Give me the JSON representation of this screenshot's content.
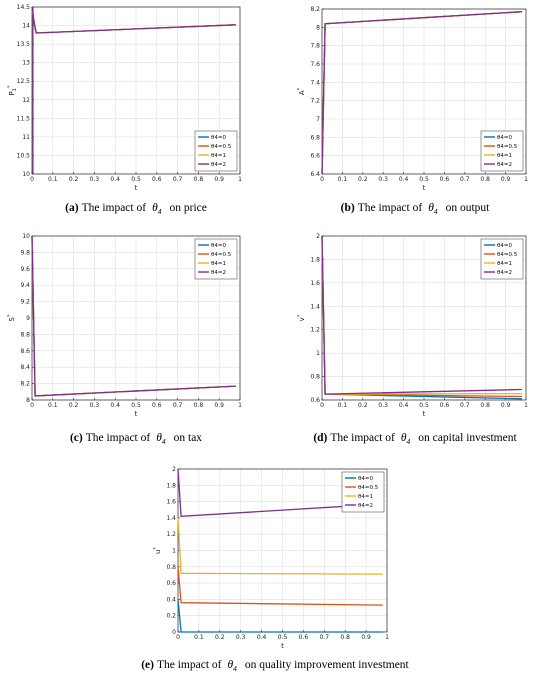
{
  "colors": {
    "theta_0": "#0072BD",
    "theta_0_5": "#D95319",
    "theta_1": "#EDB120",
    "theta_2": "#7E2F8E",
    "axis": "#262626",
    "grid": "#d9d9d9"
  },
  "chart_data": [
    {
      "id": "a",
      "type": "line",
      "caption_tag": "(a)",
      "caption_prefix": "The impact of",
      "caption_symbol": "θ",
      "caption_subscript": "4",
      "caption_suffix": "on price",
      "xlabel": "t",
      "ylabel": "P",
      "ylabel_sub": "1",
      "ylabel_sup": "*",
      "xlim": [
        0,
        1
      ],
      "ylim": [
        10,
        14.5
      ],
      "xticks": [
        0,
        0.1,
        0.2,
        0.3,
        0.4,
        0.5,
        0.6,
        0.7,
        0.8,
        0.9,
        1
      ],
      "xtick_labels": [
        "0",
        "0.1",
        "0.2",
        "0.3",
        "0.4",
        "0.5",
        "0.6",
        "0.7",
        "0.8",
        "0.9",
        "1"
      ],
      "yticks": [
        10,
        10.5,
        11,
        11.5,
        12,
        12.5,
        13,
        13.5,
        14,
        14.5
      ],
      "ytick_labels": [
        "10",
        "10.5",
        "11",
        "11.5",
        "12",
        "12.5",
        "13",
        "13.5",
        "14",
        "14.5"
      ],
      "grid": true,
      "legend_position": "lower-right",
      "series": [
        {
          "name": "θ4=0",
          "color_key": "theta_0",
          "x": [
            0,
            0.012,
            0.02,
            0.98
          ],
          "y": [
            14.5,
            14.0,
            13.8,
            14.02
          ]
        },
        {
          "name": "θ4=0.5",
          "color_key": "theta_0_5",
          "x": [
            0,
            0.012,
            0.02,
            0.98
          ],
          "y": [
            14.5,
            14.0,
            13.8,
            14.02
          ]
        },
        {
          "name": "θ4=1",
          "color_key": "theta_1",
          "x": [
            0,
            0.012,
            0.02,
            0.98
          ],
          "y": [
            14.5,
            14.0,
            13.8,
            14.02
          ]
        },
        {
          "name": "θ4=2",
          "color_key": "theta_2",
          "x": [
            0,
            0.01,
            0.02,
            0.98
          ],
          "y": [
            14.5,
            14.1,
            13.8,
            14.02
          ]
        }
      ],
      "extra_lines": [
        {
          "color_key": "theta_2",
          "x": [
            0.005,
            0.005
          ],
          "y": [
            10,
            14.5
          ]
        }
      ]
    },
    {
      "id": "b",
      "type": "line",
      "caption_tag": "(b)",
      "caption_prefix": "The impact of",
      "caption_symbol": "θ",
      "caption_subscript": "4",
      "caption_suffix": "on output",
      "xlabel": "t",
      "ylabel": "A",
      "ylabel_sub": "",
      "ylabel_sup": "*",
      "xlim": [
        0,
        1
      ],
      "ylim": [
        6.4,
        8.2
      ],
      "xticks": [
        0,
        0.1,
        0.2,
        0.3,
        0.4,
        0.5,
        0.6,
        0.7,
        0.8,
        0.9,
        1
      ],
      "xtick_labels": [
        "0",
        "0.1",
        "0.2",
        "0.3",
        "0.4",
        "0.5",
        "0.6",
        "0.7",
        "0.8",
        "0.9",
        "1"
      ],
      "yticks": [
        6.4,
        6.6,
        6.8,
        7,
        7.2,
        7.4,
        7.6,
        7.8,
        8,
        8.2
      ],
      "ytick_labels": [
        "6.4",
        "6.6",
        "6.8",
        "7",
        "7.2",
        "7.4",
        "7.6",
        "7.8",
        "8",
        "8.2"
      ],
      "grid": true,
      "legend_position": "lower-right",
      "series": [
        {
          "name": "θ4=0",
          "color_key": "theta_0",
          "x": [
            0,
            0.015,
            0.98
          ],
          "y": [
            6.4,
            8.04,
            8.17
          ]
        },
        {
          "name": "θ4=0.5",
          "color_key": "theta_0_5",
          "x": [
            0,
            0.015,
            0.98
          ],
          "y": [
            6.4,
            8.04,
            8.17
          ]
        },
        {
          "name": "θ4=1",
          "color_key": "theta_1",
          "x": [
            0,
            0.015,
            0.98
          ],
          "y": [
            6.4,
            8.04,
            8.17
          ]
        },
        {
          "name": "θ4=2",
          "color_key": "theta_2",
          "x": [
            0,
            0.015,
            0.98
          ],
          "y": [
            6.4,
            8.04,
            8.17
          ]
        }
      ],
      "extra_lines": []
    },
    {
      "id": "c",
      "type": "line",
      "caption_tag": "(c)",
      "caption_prefix": "The impact of",
      "caption_symbol": "θ",
      "caption_subscript": "4",
      "caption_suffix": "on tax",
      "xlabel": "t",
      "ylabel": "S",
      "ylabel_sub": "",
      "ylabel_sup": "*",
      "xlim": [
        0,
        1
      ],
      "ylim": [
        8,
        10
      ],
      "xticks": [
        0,
        0.1,
        0.2,
        0.3,
        0.4,
        0.5,
        0.6,
        0.7,
        0.8,
        0.9,
        1
      ],
      "xtick_labels": [
        "0",
        "0.1",
        "0.2",
        "0.3",
        "0.4",
        "0.5",
        "0.6",
        "0.7",
        "0.8",
        "0.9",
        "1"
      ],
      "yticks": [
        8,
        8.2,
        8.4,
        8.6,
        8.8,
        9,
        9.2,
        9.4,
        9.6,
        9.8,
        10
      ],
      "ytick_labels": [
        "8",
        "8.2",
        "8.4",
        "8.6",
        "8.8",
        "9",
        "9.2",
        "9.4",
        "9.6",
        "9.8",
        "10"
      ],
      "grid": true,
      "legend_position": "upper-right",
      "series": [
        {
          "name": "θ4=0",
          "color_key": "theta_0",
          "x": [
            0,
            0.015,
            0.98
          ],
          "y": [
            10,
            8.05,
            8.17
          ]
        },
        {
          "name": "θ4=0.5",
          "color_key": "theta_0_5",
          "x": [
            0,
            0.015,
            0.98
          ],
          "y": [
            10,
            8.05,
            8.17
          ]
        },
        {
          "name": "θ4=1",
          "color_key": "theta_1",
          "x": [
            0,
            0.015,
            0.98
          ],
          "y": [
            10,
            8.05,
            8.17
          ]
        },
        {
          "name": "θ4=2",
          "color_key": "theta_2",
          "x": [
            0,
            0.015,
            0.98
          ],
          "y": [
            10,
            8.05,
            8.17
          ]
        }
      ],
      "extra_lines": []
    },
    {
      "id": "d",
      "type": "line",
      "caption_tag": "(d)",
      "caption_prefix": "The impact of",
      "caption_symbol": "θ",
      "caption_subscript": "4",
      "caption_suffix": "on capital investment",
      "xlabel": "t",
      "ylabel": "v",
      "ylabel_sub": "",
      "ylabel_sup": "*",
      "xlim": [
        0,
        1
      ],
      "ylim": [
        0.6,
        2
      ],
      "xticks": [
        0,
        0.1,
        0.2,
        0.3,
        0.4,
        0.5,
        0.6,
        0.7,
        0.8,
        0.9,
        1
      ],
      "xtick_labels": [
        "0",
        "0.1",
        "0.2",
        "0.3",
        "0.4",
        "0.5",
        "0.6",
        "0.7",
        "0.8",
        "0.9",
        "1"
      ],
      "yticks": [
        0.6,
        0.8,
        1,
        1.2,
        1.4,
        1.6,
        1.8,
        2
      ],
      "ytick_labels": [
        "0.6",
        "0.8",
        "1",
        "1.2",
        "1.4",
        "1.6",
        "1.8",
        "2"
      ],
      "grid": true,
      "legend_position": "upper-right",
      "series": [
        {
          "name": "θ4=0",
          "color_key": "theta_0",
          "x": [
            0,
            0.015,
            0.98
          ],
          "y": [
            2,
            0.65,
            0.61
          ]
        },
        {
          "name": "θ4=0.5",
          "color_key": "theta_0_5",
          "x": [
            0,
            0.015,
            0.98
          ],
          "y": [
            2,
            0.65,
            0.63
          ]
        },
        {
          "name": "θ4=1",
          "color_key": "theta_1",
          "x": [
            0,
            0.015,
            0.98
          ],
          "y": [
            2,
            0.65,
            0.655
          ]
        },
        {
          "name": "θ4=2",
          "color_key": "theta_2",
          "x": [
            0,
            0.015,
            0.98
          ],
          "y": [
            2,
            0.65,
            0.69
          ]
        }
      ],
      "extra_lines": []
    },
    {
      "id": "e",
      "type": "line",
      "caption_tag": "(e)",
      "caption_prefix": "The impact of",
      "caption_symbol": "θ",
      "caption_subscript": "4",
      "caption_suffix": "on quality improvement investment",
      "xlabel": "t",
      "ylabel": "u",
      "ylabel_sub": "",
      "ylabel_sup": "*",
      "xlim": [
        0,
        1
      ],
      "ylim": [
        0,
        2
      ],
      "xticks": [
        0,
        0.1,
        0.2,
        0.3,
        0.4,
        0.5,
        0.6,
        0.7,
        0.8,
        0.9,
        1
      ],
      "xtick_labels": [
        "0",
        "0.1",
        "0.2",
        "0.3",
        "0.4",
        "0.5",
        "0.6",
        "0.7",
        "0.8",
        "0.9",
        "1"
      ],
      "yticks": [
        0,
        0.2,
        0.4,
        0.6,
        0.8,
        1,
        1.2,
        1.4,
        1.6,
        1.8,
        2
      ],
      "ytick_labels": [
        "0",
        "0.2",
        "0.4",
        "0.6",
        "0.8",
        "1",
        "1.2",
        "1.4",
        "1.6",
        "1.8",
        "2"
      ],
      "grid": true,
      "legend_position": "upper-right",
      "series": [
        {
          "name": "θ4=0",
          "color_key": "theta_0",
          "x": [
            0,
            0.015,
            0.98
          ],
          "y": [
            0.4,
            0.0,
            0.0
          ]
        },
        {
          "name": "θ4=0.5",
          "color_key": "theta_0_5",
          "x": [
            0,
            0.015,
            0.98
          ],
          "y": [
            0.8,
            0.36,
            0.33
          ]
        },
        {
          "name": "θ4=1",
          "color_key": "theta_1",
          "x": [
            0,
            0.015,
            0.98
          ],
          "y": [
            1.4,
            0.72,
            0.71
          ]
        },
        {
          "name": "θ4=2",
          "color_key": "theta_2",
          "x": [
            0,
            0.015,
            0.98
          ],
          "y": [
            2,
            1.42,
            1.57
          ]
        }
      ],
      "extra_lines": []
    }
  ]
}
